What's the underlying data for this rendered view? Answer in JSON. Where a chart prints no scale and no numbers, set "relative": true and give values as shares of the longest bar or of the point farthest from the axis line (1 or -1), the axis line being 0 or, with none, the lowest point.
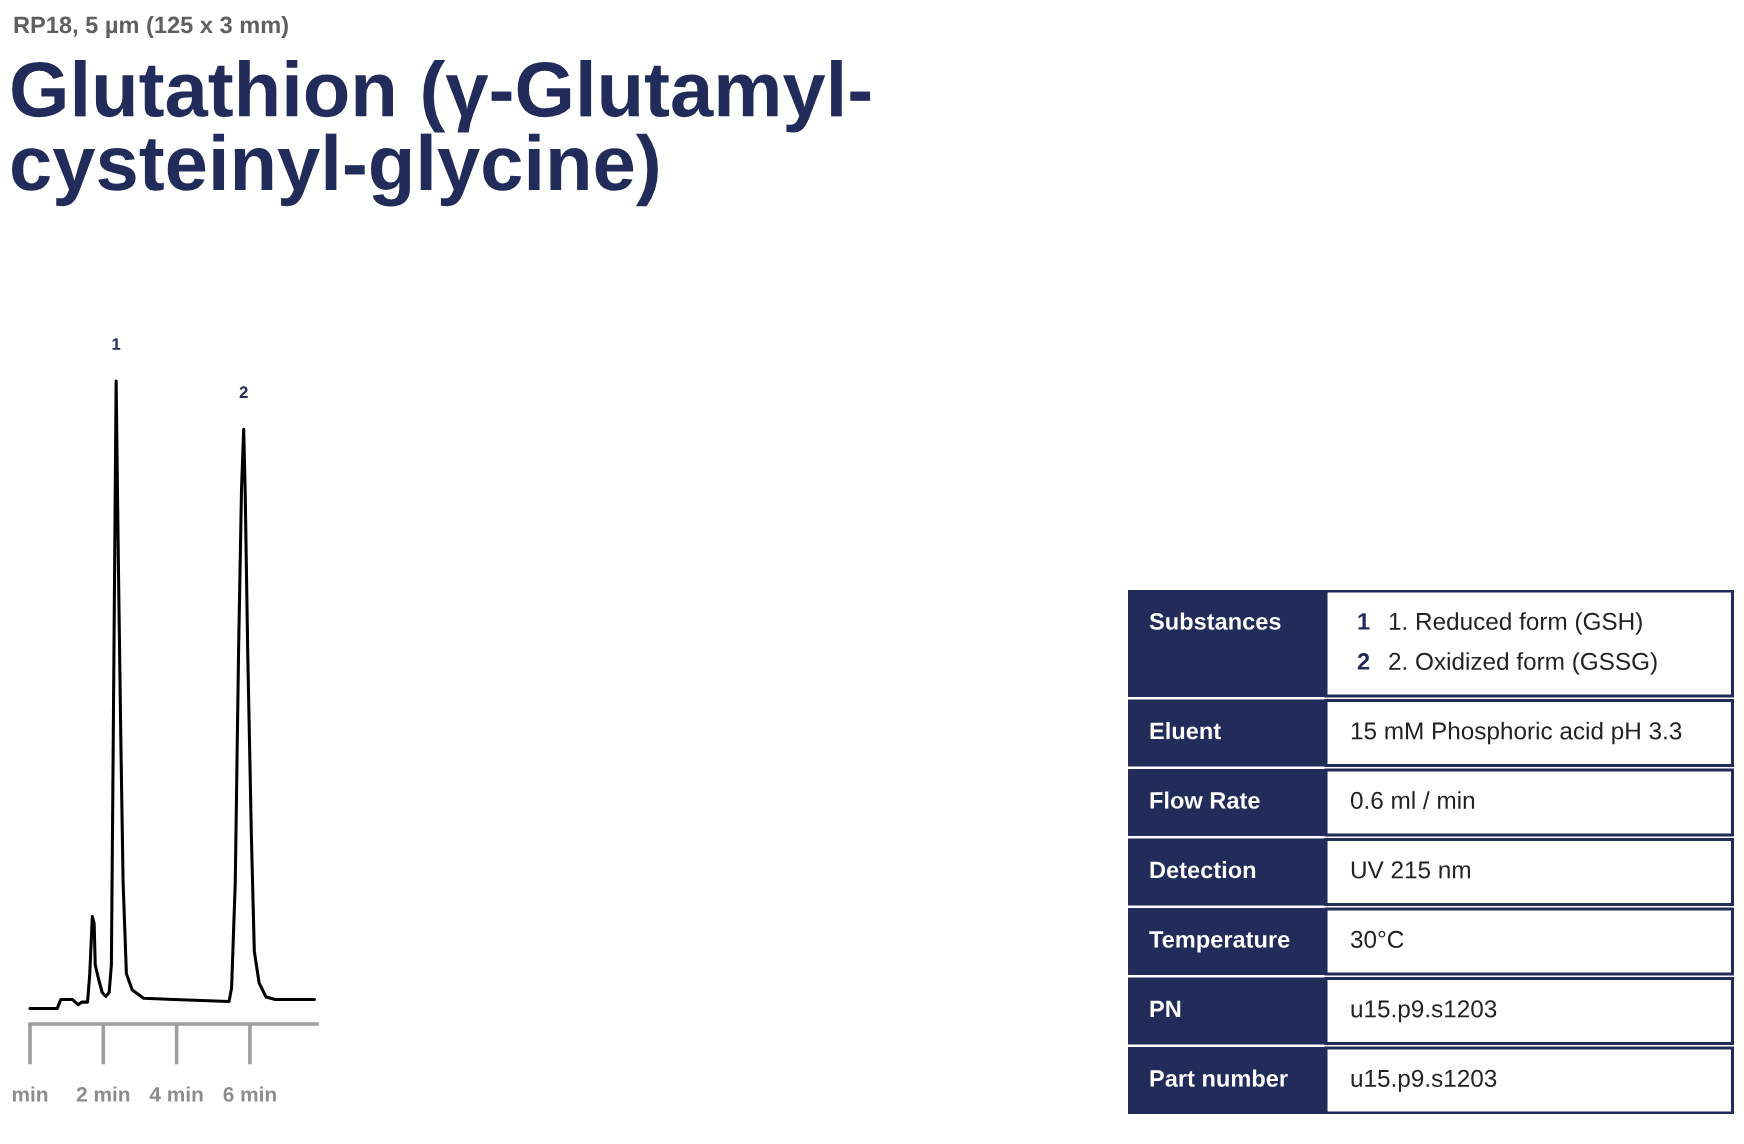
{
  "chart_data": [
    {
      "type": "line",
      "subtitle": "RP18, 5 µm (125 x 3 mm)",
      "title": "Glutathion (γ-Glutamyl-\ncysteinyl-glycine)",
      "relative": true,
      "xlim": [
        0,
        7.83
      ],
      "xticks": [
        {
          "value": 0,
          "label": "min"
        },
        {
          "value": 2,
          "label": "2 min"
        },
        {
          "value": 4,
          "label": "4 min"
        },
        {
          "value": 6,
          "label": "6 min"
        }
      ],
      "series": [
        {
          "color": "#000000",
          "x": [
            0,
            0.74,
            0.84,
            1.16,
            1.31,
            1.41,
            1.57,
            1.63,
            1.7,
            1.75,
            1.78,
            1.87,
            1.97,
            2.07,
            2.16,
            2.22,
            2.26,
            2.31,
            2.35,
            2.41,
            2.48,
            2.54,
            2.63,
            2.79,
            3.1,
            3.93,
            5.43,
            5.5,
            5.6,
            5.69,
            5.77,
            5.83,
            5.87,
            5.94,
            6.04,
            6.12,
            6.25,
            6.44,
            6.69,
            7.76
          ],
          "values": [
            0.024,
            0.024,
            0.038,
            0.038,
            0.03,
            0.034,
            0.034,
            0.077,
            0.167,
            0.156,
            0.092,
            0.07,
            0.049,
            0.043,
            0.049,
            0.092,
            0.364,
            0.72,
            1,
            0.72,
            0.435,
            0.22,
            0.078,
            0.053,
            0.04,
            0.038,
            0.035,
            0.056,
            0.22,
            0.578,
            0.83,
            0.925,
            0.83,
            0.578,
            0.292,
            0.113,
            0.064,
            0.042,
            0.038,
            0.038
          ]
        }
      ],
      "annotations": [
        {
          "text": "1",
          "x": 2.35,
          "y": 1
        },
        {
          "text": "2",
          "x": 5.83,
          "y": 0.925
        }
      ]
    },
    {
      "type": "other",
      "categories": [
        "Substances",
        "Eluent",
        "Flow Rate",
        "Detection",
        "Temperature",
        "PN",
        "Part number"
      ],
      "annotations": [
        "1",
        "1. Reduced form (GSH)",
        "2",
        "2. Oxidized form (GSSG)",
        "15 mM Phosphoric acid pH 3.3",
        "0.6 ml / min",
        "UV 215 nm",
        "30°C",
        "u15.p9.s1203",
        "u15.p9.s1203"
      ]
    }
  ]
}
